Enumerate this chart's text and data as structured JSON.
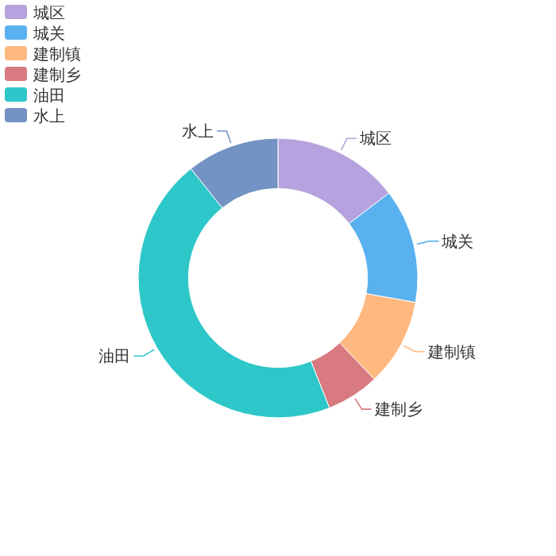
{
  "chart_data": {
    "type": "donut",
    "categories": [
      "城区",
      "城关",
      "建制镇",
      "建制乡",
      "油田",
      "水上"
    ],
    "values": [
      14.6,
      13.2,
      10.1,
      6.1,
      45.3,
      10.7
    ],
    "colors": [
      "#b6a2de",
      "#5ab1ef",
      "#ffb980",
      "#d87a80",
      "#2ec7c9",
      "#7293c3"
    ],
    "legend": "top left"
  }
}
